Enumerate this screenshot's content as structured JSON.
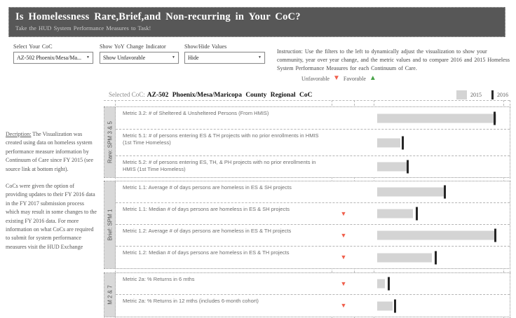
{
  "header": {
    "title": "Is Homelessness Rare,Brief,and Non-recurring in Your CoC?",
    "subtitle": "Take the HUD System Performance Measures to Task!"
  },
  "filters": [
    {
      "label": "Select Your CoC",
      "value": "AZ-502 Phoenix/Mesa/Ma...",
      "caret": "▼"
    },
    {
      "label": "Show YoY Change Indicator",
      "value": "Show Unfavorable",
      "caret": "▼"
    },
    {
      "label": "Show/Hide Values",
      "value": "Hide",
      "caret": "▼"
    }
  ],
  "instruction": "Instruction: Use the filters to the left to dynamically adjust the visualization to show your community, year over year change, and the metric values and to compare 2016 and 2015 Homeless System Performance Measures for each Continuum of Care.",
  "indicator_legend": {
    "unfavorable": "Unfavorable",
    "favorable": "Favorable",
    "unfavorable_icon": "▼",
    "favorable_icon": "▲"
  },
  "selected_coc": {
    "label": "Selected CoC:",
    "value": "AZ-502 Phoenix/Mesa/Maricopa County Regional CoC"
  },
  "year_legend": {
    "y2015": "2015",
    "y2016": "2016"
  },
  "sidebar": {
    "p1_lead": "Decription:",
    "p1_body": " The Visualization was created using data on homeless system performance measure information by Continuum of Care since FY 2015 (see source link at bottom right).",
    "p2": "CoCs were given the option of providing updates to their FY 2016 data in the FY 2017 submission process which may result in some changes to the existing FY 2016 data. For more information on what CoCs are required to submit for system performance measures visit the HUD Exchange"
  },
  "colors": {
    "header_bg": "#575757",
    "bar_2015": "#d4d4d4",
    "tick_2016": "#262626",
    "unfavorable_red": "#f0604d",
    "favorable_green": "#47a247",
    "group_strip_bg": "#d9d9d9"
  },
  "chart_data": {
    "type": "bar",
    "title": "HUD System Performance Measures, 2015 (gray bar) vs 2016 (dark tick)",
    "note": "Numeric values hidden (Show/Hide Values = Hide); bar2015_pct = 2015 gray bar length and tick2016_pct = 2016 tick position, as % of bar-axis width",
    "legend": [
      "2015",
      "2016"
    ],
    "groups": [
      {
        "label": "Rare: SPM 3 & 5",
        "rows": [
          {
            "metric": "Metric 3.2: # of Sheltered & Unsheltered Persons (From HMIS)",
            "indicator": "none",
            "bar2015_pct": 94,
            "tick2016_pct": 92
          },
          {
            "metric": "Metric 5.1: # of persons entering ES & TH projects with no prior enrollments in HMIS (1st Time Homeless)",
            "indicator": "none",
            "bar2015_pct": 18,
            "tick2016_pct": 20
          },
          {
            "metric": "Metric 5.2: # of persons entering ES, TH, & PH projects with no prior enrollments in HMIS (1st Time Homeless)",
            "indicator": "none",
            "bar2015_pct": 23,
            "tick2016_pct": 24
          }
        ]
      },
      {
        "label": "Brief: SPM 1",
        "rows": [
          {
            "metric": "Metric 1.1: Average # of days persons are homeless in ES & SH projects",
            "indicator": "none",
            "bar2015_pct": 54,
            "tick2016_pct": 53
          },
          {
            "metric": "Metric 1.1: Median # of days persons are homeless in ES & SH projects",
            "indicator": "unfavorable",
            "bar2015_pct": 28,
            "tick2016_pct": 31
          },
          {
            "metric": "Metric 1.2: Average # of days persons are homeless in ES & TH projects",
            "indicator": "unfavorable",
            "bar2015_pct": 92,
            "tick2016_pct": 93
          },
          {
            "metric": "Metric 1.2: Median # of days persons are homeless in ES & TH projects",
            "indicator": "unfavorable",
            "bar2015_pct": 43,
            "tick2016_pct": 46
          }
        ]
      },
      {
        "label": "M 2 & 7",
        "rows": [
          {
            "metric": "Metric 2a: % Returns in 6 mths",
            "indicator": "unfavorable",
            "bar2015_pct": 6,
            "tick2016_pct": 9
          },
          {
            "metric": "Metric 2a: % Returns in 12 mths (includes 6-month cohort)",
            "indicator": "unfavorable",
            "bar2015_pct": 12,
            "tick2016_pct": 14
          }
        ]
      }
    ]
  }
}
